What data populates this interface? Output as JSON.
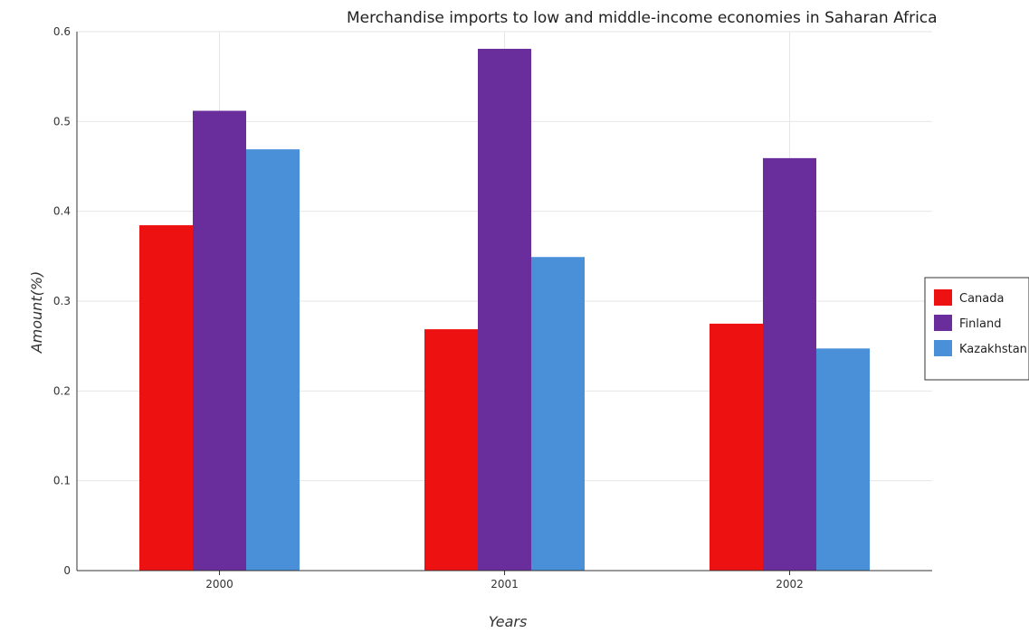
{
  "chart_data": {
    "type": "bar",
    "title": "Merchandise imports to low and middle-income economies in Saharan Africa",
    "xlabel": "Years",
    "ylabel": "Amount(%)",
    "categories": [
      "2000",
      "2001",
      "2002"
    ],
    "series": [
      {
        "name": "Canada",
        "color": "#ee1111",
        "values": [
          0.3845,
          0.2687,
          0.2749
        ]
      },
      {
        "name": "Finland",
        "color": "#6a2d9c",
        "values": [
          0.5119,
          0.5809,
          0.4592
        ]
      },
      {
        "name": "Kazakhstan",
        "color": "#4a90d9",
        "values": [
          0.469,
          0.3491,
          0.2473
        ]
      }
    ],
    "ylim": [
      0,
      0.6
    ],
    "yticks": [
      "0",
      "0.1",
      "0.2",
      "0.3",
      "0.4",
      "0.5",
      "0.6"
    ],
    "grid": true,
    "legend": "right"
  }
}
